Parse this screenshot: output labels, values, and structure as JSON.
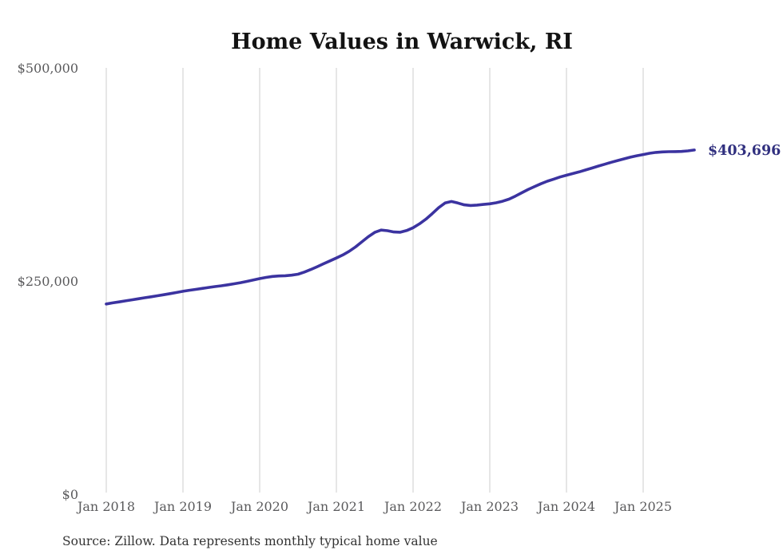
{
  "chart": {
    "title": "Home Values in Warwick, RI",
    "current_value_label": "$403,696",
    "source_note": "Source: Zillow. Data represents monthly typical home value"
  },
  "chart_data": {
    "type": "line",
    "title": "Home Values in Warwick, RI",
    "series_name": "Monthly typical home value",
    "x": [
      "2018-01",
      "2018-02",
      "2018-03",
      "2018-04",
      "2018-05",
      "2018-06",
      "2018-07",
      "2018-08",
      "2018-09",
      "2018-10",
      "2018-11",
      "2018-12",
      "2019-01",
      "2019-02",
      "2019-03",
      "2019-04",
      "2019-05",
      "2019-06",
      "2019-07",
      "2019-08",
      "2019-09",
      "2019-10",
      "2019-11",
      "2019-12",
      "2020-01",
      "2020-02",
      "2020-03",
      "2020-04",
      "2020-05",
      "2020-06",
      "2020-07",
      "2020-08",
      "2020-09",
      "2020-10",
      "2020-11",
      "2020-12",
      "2021-01",
      "2021-02",
      "2021-03",
      "2021-04",
      "2021-05",
      "2021-06",
      "2021-07",
      "2021-08",
      "2021-09",
      "2021-10",
      "2021-11",
      "2021-12",
      "2022-01",
      "2022-02",
      "2022-03",
      "2022-04",
      "2022-05",
      "2022-06",
      "2022-07",
      "2022-08",
      "2022-09",
      "2022-10",
      "2022-11",
      "2022-12",
      "2023-01",
      "2023-02",
      "2023-03",
      "2023-04",
      "2023-05",
      "2023-06",
      "2023-07",
      "2023-08",
      "2023-09",
      "2023-10",
      "2023-11",
      "2023-12",
      "2024-01",
      "2024-02",
      "2024-03",
      "2024-04",
      "2024-05",
      "2024-06",
      "2024-07",
      "2024-08",
      "2024-09",
      "2024-10",
      "2024-11",
      "2024-12",
      "2025-01",
      "2025-02",
      "2025-03",
      "2025-04",
      "2025-05",
      "2025-06",
      "2025-07",
      "2025-08",
      "2025-09"
    ],
    "values": [
      223000,
      224300,
      225500,
      226700,
      227900,
      229100,
      230300,
      231500,
      232700,
      233900,
      235200,
      236500,
      237900,
      239100,
      240200,
      241300,
      242400,
      243400,
      244400,
      245500,
      246700,
      248000,
      249500,
      251100,
      252800,
      254200,
      255300,
      255900,
      256200,
      256800,
      258000,
      260500,
      263500,
      266800,
      270200,
      273600,
      277000,
      280500,
      284800,
      290000,
      296000,
      302000,
      307000,
      309700,
      309000,
      307500,
      307200,
      309200,
      312500,
      317000,
      322500,
      329000,
      336000,
      341500,
      343300,
      341500,
      339300,
      338600,
      339000,
      339800,
      340500,
      341800,
      343500,
      346000,
      349500,
      353500,
      357300,
      360800,
      364000,
      367000,
      369500,
      372000,
      374100,
      376000,
      378000,
      380200,
      382500,
      384800,
      387000,
      389200,
      391300,
      393300,
      395200,
      396900,
      398300,
      399800,
      400800,
      401400,
      401700,
      401800,
      402000,
      402600,
      403696
    ],
    "end_label": "$403,696",
    "x_tick_labels": [
      "Jan 2018",
      "Jan 2019",
      "Jan 2020",
      "Jan 2021",
      "Jan 2022",
      "Jan 2023",
      "Jan 2024",
      "Jan 2025"
    ],
    "y_tick_labels": [
      "$0",
      "$250,000",
      "$500,000"
    ],
    "ylim": [
      0,
      500000
    ],
    "grid": "vertical-only",
    "legend": "none",
    "colors": {
      "line": "#3b33a0",
      "end_label": "#31307f",
      "grid": "#cdcdcd",
      "tick_text": "#5a5a5c",
      "title_text": "#131313",
      "source_text": "#333333",
      "background": "#ffffff"
    }
  }
}
